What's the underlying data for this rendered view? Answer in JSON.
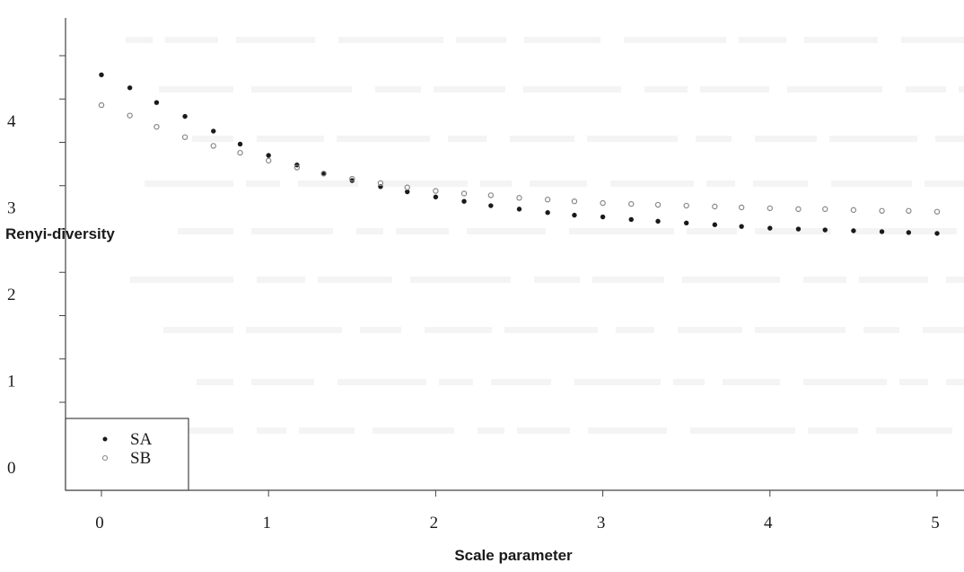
{
  "chart_data": {
    "type": "scatter",
    "xlabel": "Scale parameter",
    "ylabel": "Renyi-diversity",
    "xlim": [
      -0.3,
      5.2
    ],
    "ylim": [
      -0.4,
      4.35
    ],
    "x_ticks": [
      "0",
      "1",
      "2",
      "3",
      "4",
      "5"
    ],
    "y_ticks": [
      "0",
      "1",
      "2",
      "3",
      "4"
    ],
    "legend": {
      "position": "bottom-left",
      "entries": [
        "SA",
        "SB"
      ]
    },
    "x": [
      0,
      0.17,
      0.33,
      0.5,
      0.67,
      0.83,
      1,
      1.17,
      1.33,
      1.5,
      1.67,
      1.83,
      2,
      2.17,
      2.33,
      2.5,
      2.67,
      2.83,
      3,
      3.17,
      3.33,
      3.5,
      3.67,
      3.83,
      4,
      4.17,
      4.33,
      4.5,
      4.67,
      4.83,
      5
    ],
    "series": [
      {
        "name": "SA",
        "marker": "filled",
        "color": "#1a1a1a",
        "values": [
          3.8,
          3.65,
          3.48,
          3.32,
          3.15,
          3.0,
          2.87,
          2.76,
          2.66,
          2.58,
          2.51,
          2.45,
          2.39,
          2.34,
          2.29,
          2.25,
          2.21,
          2.18,
          2.16,
          2.13,
          2.11,
          2.09,
          2.07,
          2.05,
          2.03,
          2.02,
          2.01,
          2.0,
          1.99,
          1.98,
          1.97
        ]
      },
      {
        "name": "SB",
        "marker": "open",
        "color": "#888888",
        "values": [
          3.45,
          3.33,
          3.2,
          3.08,
          2.98,
          2.9,
          2.81,
          2.73,
          2.66,
          2.6,
          2.55,
          2.5,
          2.46,
          2.43,
          2.41,
          2.38,
          2.36,
          2.34,
          2.32,
          2.31,
          2.3,
          2.29,
          2.28,
          2.27,
          2.26,
          2.25,
          2.25,
          2.24,
          2.23,
          2.23,
          2.22
        ]
      }
    ]
  }
}
